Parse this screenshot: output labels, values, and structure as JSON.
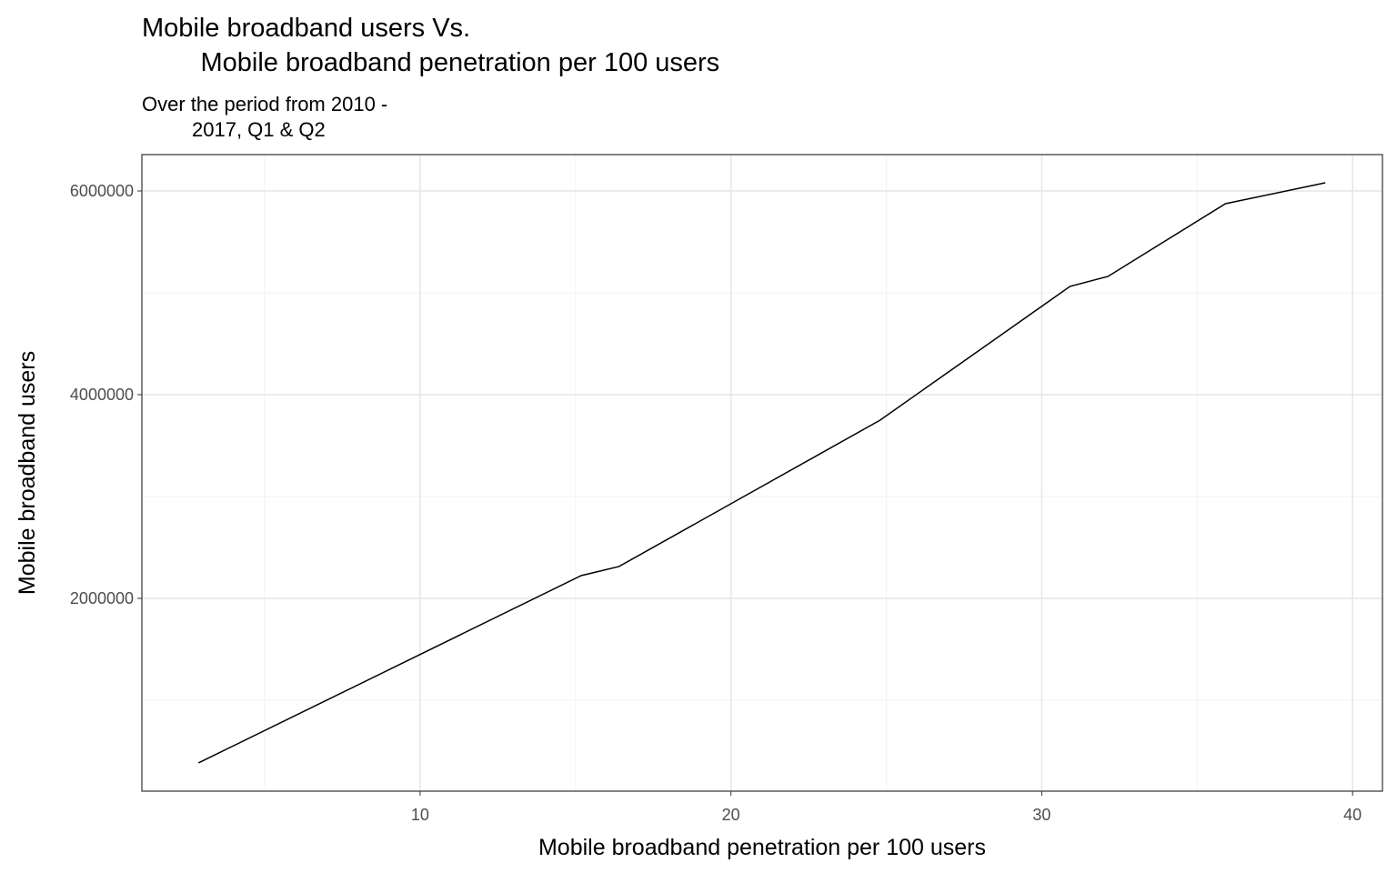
{
  "chart_data": {
    "type": "line",
    "title": "Mobile broadband users Vs.\n        Mobile broadband penetration per 100 users",
    "subtitle": "Over the period from 2010 -\n         2017, Q1 & Q2",
    "x_label": "Mobile broadband penetration per 100 users",
    "y_label": "Mobile broadband users",
    "x": [
      2.87,
      15.18,
      16.4,
      24.8,
      30.91,
      32.13,
      35.91,
      39.12
    ],
    "values": [
      384000,
      2223000,
      2313000,
      3750000,
      5063000,
      5161000,
      5875000,
      6080000
    ],
    "color": "#000000",
    "xlim": [
      1.05,
      40.96
    ],
    "ylim": [
      107000,
      6357000
    ],
    "xticks": [
      10,
      20,
      30,
      40
    ],
    "yticks": [
      2000000,
      4000000,
      6000000
    ],
    "x_minor_grid": [
      5,
      15,
      25,
      35
    ],
    "y_minor_grid": [
      1000000,
      3000000,
      5000000
    ],
    "grid": true
  }
}
